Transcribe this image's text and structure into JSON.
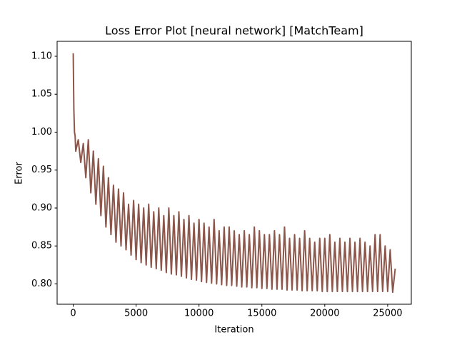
{
  "chart_data": {
    "type": "line",
    "title": "Loss Error Plot [neural network] [MatchTeam]",
    "xlabel": "Iteration",
    "ylabel": "Error",
    "color": "#8c564b",
    "xlim": [
      -1280,
      26880
    ],
    "ylim": [
      0.7732,
      1.1197
    ],
    "xticks": [
      0,
      5000,
      10000,
      15000,
      20000,
      25000
    ],
    "yticks": [
      {
        "value": 0.8,
        "label": "0.80"
      },
      0.85,
      {
        "value": 0.9,
        "label": "0.90"
      },
      0.95,
      {
        "value": 1.0,
        "label": "1.00"
      },
      1.05,
      {
        "value": 1.1,
        "label": "1.10"
      }
    ],
    "grid": false,
    "x": [
      0,
      50,
      100,
      150,
      200,
      400,
      600,
      800,
      1000,
      1200,
      1400,
      1600,
      1800,
      2000,
      2200,
      2400,
      2600,
      2800,
      3000,
      3200,
      3400,
      3600,
      3800,
      4000,
      4200,
      4400,
      4600,
      4800,
      5000,
      5200,
      5400,
      5600,
      5800,
      6000,
      6200,
      6400,
      6600,
      6800,
      7000,
      7200,
      7400,
      7600,
      7800,
      8000,
      8200,
      8400,
      8600,
      8800,
      9000,
      9200,
      9400,
      9600,
      9800,
      10000,
      10200,
      10400,
      10600,
      10800,
      11000,
      11200,
      11400,
      11600,
      11800,
      12000,
      12200,
      12400,
      12600,
      12800,
      13000,
      13200,
      13400,
      13600,
      13800,
      14000,
      14200,
      14400,
      14600,
      14800,
      15000,
      15200,
      15400,
      15600,
      15800,
      16000,
      16200,
      16400,
      16600,
      16800,
      17000,
      17200,
      17400,
      17600,
      17800,
      18000,
      18200,
      18400,
      18600,
      18800,
      19000,
      19200,
      19400,
      19600,
      19800,
      20000,
      20200,
      20400,
      20600,
      20800,
      21000,
      21200,
      21400,
      21600,
      21800,
      22000,
      22200,
      22400,
      22600,
      22800,
      23000,
      23200,
      23400,
      23600,
      23800,
      24000,
      24200,
      24400,
      24600,
      24800,
      25000,
      25200,
      25400,
      25600
    ],
    "values": [
      1.104,
      1.03,
      1.0,
      0.995,
      0.975,
      0.99,
      0.96,
      0.985,
      0.94,
      0.99,
      0.92,
      0.975,
      0.905,
      0.965,
      0.89,
      0.955,
      0.875,
      0.94,
      0.865,
      0.93,
      0.855,
      0.925,
      0.85,
      0.92,
      0.845,
      0.905,
      0.838,
      0.91,
      0.832,
      0.905,
      0.828,
      0.9,
      0.825,
      0.905,
      0.822,
      0.895,
      0.82,
      0.9,
      0.818,
      0.89,
      0.815,
      0.9,
      0.813,
      0.89,
      0.812,
      0.895,
      0.81,
      0.885,
      0.808,
      0.89,
      0.806,
      0.88,
      0.805,
      0.885,
      0.803,
      0.88,
      0.802,
      0.875,
      0.801,
      0.885,
      0.8,
      0.87,
      0.799,
      0.875,
      0.798,
      0.875,
      0.798,
      0.87,
      0.797,
      0.865,
      0.796,
      0.87,
      0.796,
      0.865,
      0.795,
      0.875,
      0.795,
      0.87,
      0.794,
      0.865,
      0.794,
      0.865,
      0.793,
      0.87,
      0.793,
      0.865,
      0.793,
      0.875,
      0.792,
      0.86,
      0.792,
      0.865,
      0.792,
      0.86,
      0.791,
      0.87,
      0.791,
      0.86,
      0.791,
      0.855,
      0.791,
      0.86,
      0.79,
      0.86,
      0.79,
      0.865,
      0.79,
      0.855,
      0.79,
      0.86,
      0.79,
      0.855,
      0.79,
      0.86,
      0.79,
      0.855,
      0.79,
      0.86,
      0.79,
      0.855,
      0.79,
      0.85,
      0.79,
      0.865,
      0.79,
      0.865,
      0.79,
      0.85,
      0.79,
      0.845,
      0.789,
      0.82
    ]
  }
}
